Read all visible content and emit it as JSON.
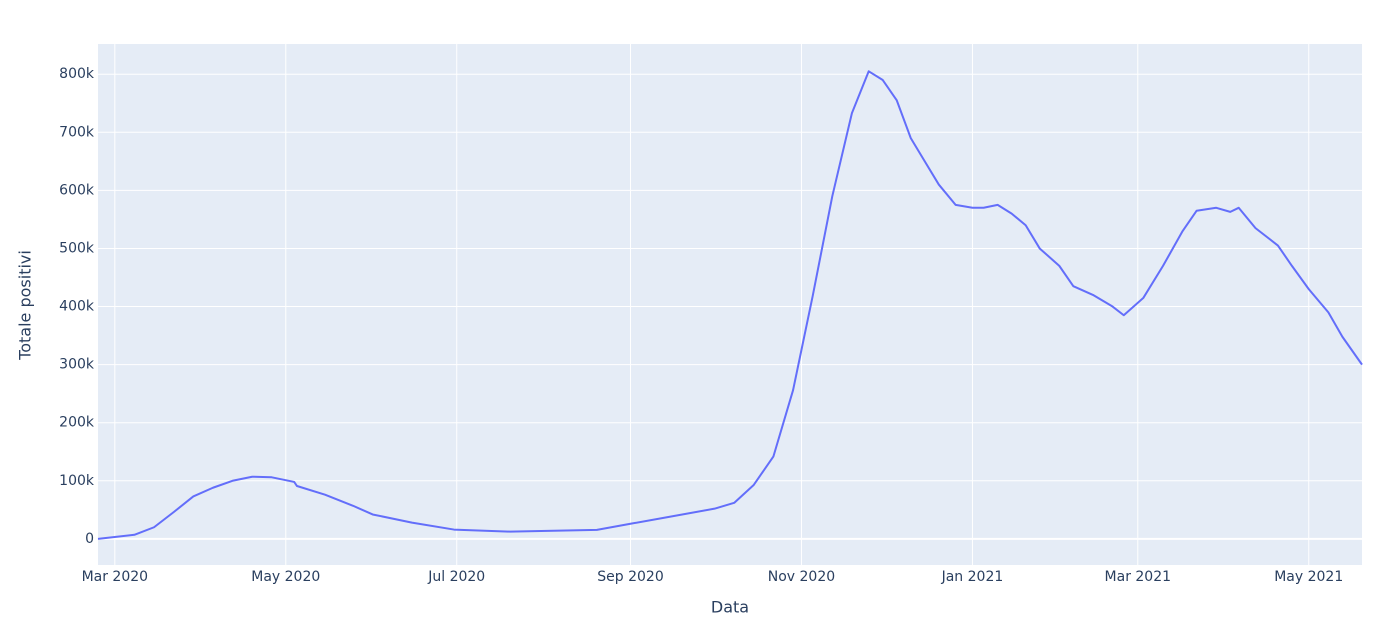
{
  "chart_data": {
    "type": "line",
    "x_label": "Data",
    "y_label": "Totale positivi",
    "x": [
      "2020-02-24",
      "2020-03-08",
      "2020-03-15",
      "2020-03-22",
      "2020-03-29",
      "2020-04-05",
      "2020-04-12",
      "2020-04-19",
      "2020-04-26",
      "2020-05-01",
      "2020-05-04",
      "2020-05-05",
      "2020-05-15",
      "2020-05-25",
      "2020-06-01",
      "2020-06-15",
      "2020-06-30",
      "2020-07-20",
      "2020-08-20",
      "2020-09-01",
      "2020-09-15",
      "2020-10-01",
      "2020-10-08",
      "2020-10-15",
      "2020-10-22",
      "2020-10-29",
      "2020-11-05",
      "2020-11-12",
      "2020-11-19",
      "2020-11-25",
      "2020-11-30",
      "2020-12-05",
      "2020-12-10",
      "2020-12-15",
      "2020-12-20",
      "2020-12-26",
      "2021-01-01",
      "2021-01-05",
      "2021-01-10",
      "2021-01-15",
      "2021-01-20",
      "2021-01-25",
      "2021-02-01",
      "2021-02-06",
      "2021-02-13",
      "2021-02-20",
      "2021-02-24",
      "2021-03-03",
      "2021-03-10",
      "2021-03-17",
      "2021-03-22",
      "2021-03-29",
      "2021-04-03",
      "2021-04-06",
      "2021-04-12",
      "2021-04-20",
      "2021-04-25",
      "2021-05-01",
      "2021-05-08",
      "2021-05-13",
      "2021-05-20"
    ],
    "series": [
      {
        "name": "Totale positivi",
        "color": "#636efa",
        "values": [
          0,
          7000,
          20000,
          46000,
          73000,
          88000,
          100000,
          107000,
          106000,
          101000,
          98000,
          91000,
          76000,
          57000,
          42000,
          28000,
          16000,
          12500,
          15500,
          26000,
          38000,
          52000,
          62000,
          93000,
          142000,
          256000,
          418000,
          590000,
          733000,
          805000,
          790000,
          755000,
          690000,
          650000,
          610000,
          575000,
          570000,
          570000,
          575000,
          560000,
          540000,
          500000,
          470000,
          435000,
          420000,
          400000,
          385000,
          415000,
          470000,
          530000,
          565000,
          570000,
          563000,
          570000,
          535000,
          505000,
          470000,
          430000,
          390000,
          348000,
          300000
        ]
      }
    ],
    "xlim": [
      "2020-02-24",
      "2021-05-20"
    ],
    "xticks": [
      {
        "value": "2020-03-01",
        "label": "Mar 2020"
      },
      {
        "value": "2020-05-01",
        "label": "May 2020"
      },
      {
        "value": "2020-07-01",
        "label": "Jul 2020"
      },
      {
        "value": "2020-09-01",
        "label": "Sep 2020"
      },
      {
        "value": "2020-11-01",
        "label": "Nov 2020"
      },
      {
        "value": "2021-01-01",
        "label": "Jan 2021"
      },
      {
        "value": "2021-03-01",
        "label": "Mar 2021"
      },
      {
        "value": "2021-05-01",
        "label": "May 2021"
      }
    ],
    "ylim": [
      -45000,
      852000
    ],
    "yticks": [
      0,
      {
        "value": 100000,
        "label": "100k"
      },
      {
        "value": 200000,
        "label": "200k"
      },
      {
        "value": 300000,
        "label": "300k"
      },
      {
        "value": 400000,
        "label": "400k"
      },
      {
        "value": 500000,
        "label": "500k"
      },
      {
        "value": 600000,
        "label": "600k"
      },
      {
        "value": 700000,
        "label": "700k"
      },
      {
        "value": 800000,
        "label": "800k"
      }
    ],
    "grid": true
  }
}
